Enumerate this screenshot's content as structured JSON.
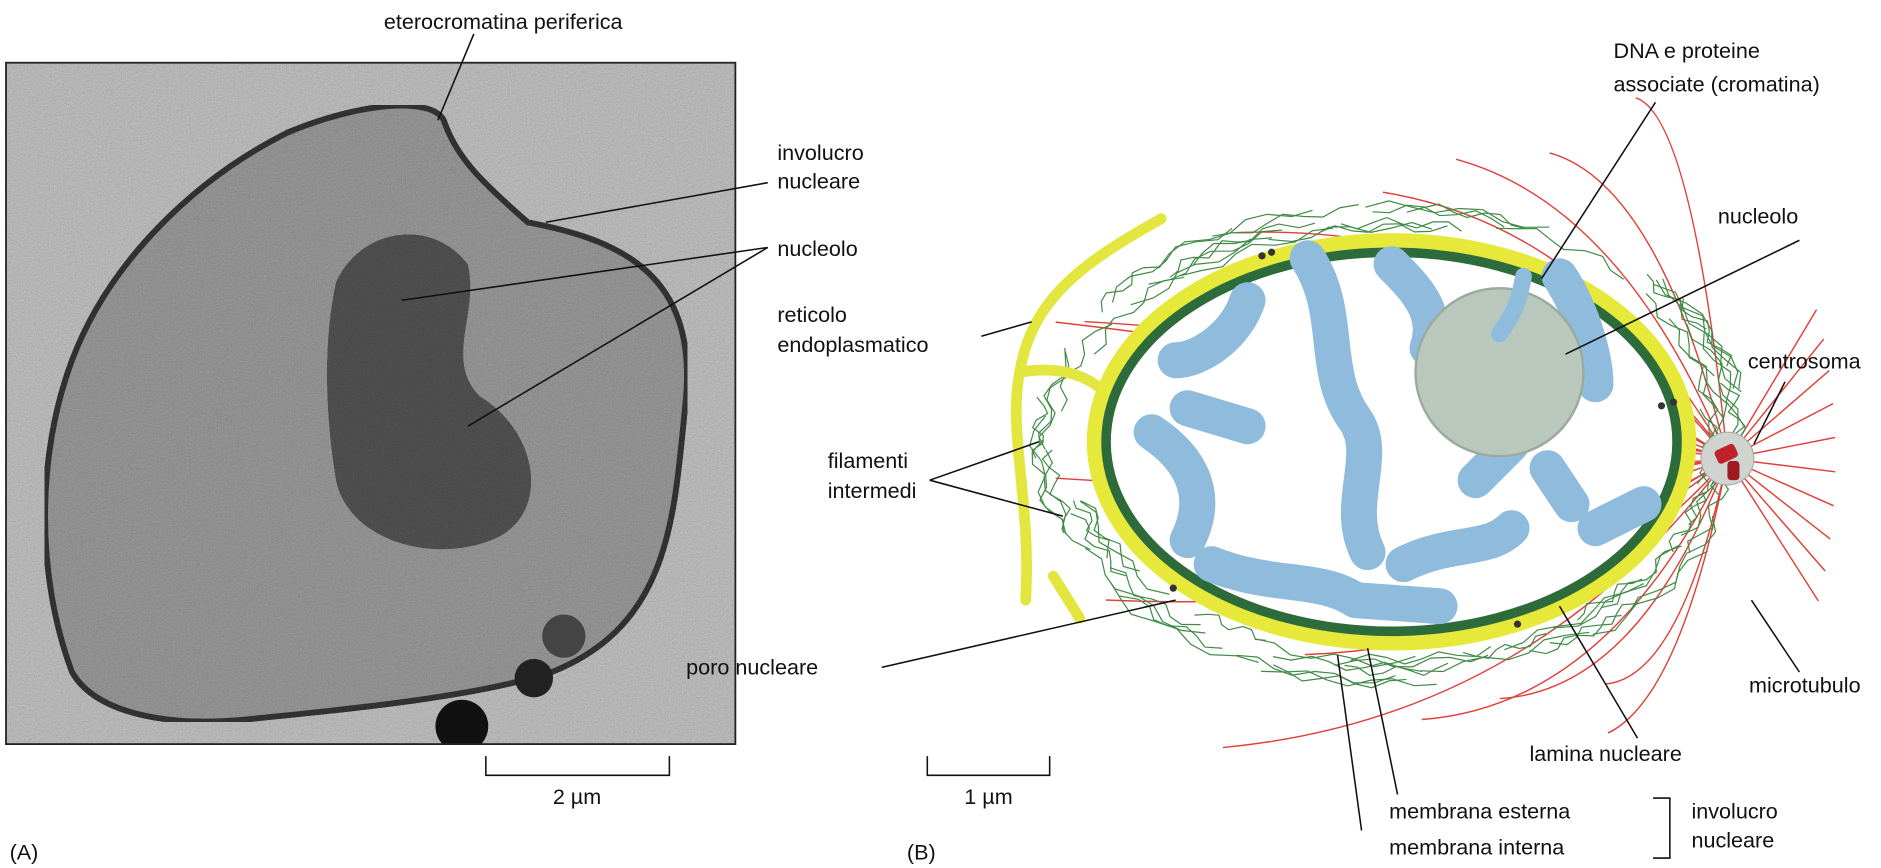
{
  "panel_a": {
    "tag": "(A)",
    "scale_bar": "2 µm",
    "labels": {
      "heterochromatin": [
        "eterocromatina periferica"
      ],
      "envelope": [
        "involucro",
        "nucleare"
      ],
      "nucleolus": [
        "nucleolo"
      ]
    }
  },
  "panel_b": {
    "tag": "(B)",
    "scale_bar": "1 µm",
    "labels": {
      "chromatin": [
        "DNA e proteine",
        "associate (cromatina)"
      ],
      "nucleolus": [
        "nucleolo"
      ],
      "er": [
        "reticolo",
        "endoplasmatico"
      ],
      "centrosome": [
        "centrosoma"
      ],
      "filaments": [
        "filamenti",
        "intermedi"
      ],
      "pore": [
        "poro nucleare"
      ],
      "microtubule": [
        "microtubulo"
      ],
      "lamina": [
        "lamina nucleare"
      ],
      "outer": [
        "membrana esterna"
      ],
      "inner": [
        "membrana interna"
      ],
      "envelope": [
        "involucro",
        "nucleare"
      ]
    }
  }
}
